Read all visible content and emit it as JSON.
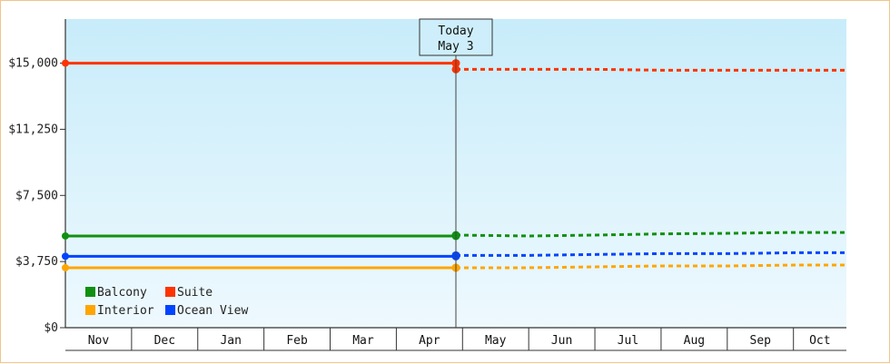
{
  "chart_data": {
    "type": "line",
    "title": "",
    "xlabel": "",
    "ylabel": "",
    "ylim": [
      0,
      17500
    ],
    "y_ticks": [
      {
        "value": 0,
        "label": "$0"
      },
      {
        "value": 3750,
        "label": "$3,750"
      },
      {
        "value": 7500,
        "label": "$7,500"
      },
      {
        "value": 11250,
        "label": "$11,250"
      },
      {
        "value": 15000,
        "label": "$15,000"
      }
    ],
    "months": [
      "Nov",
      "Dec",
      "Jan",
      "Feb",
      "Mar",
      "Apr",
      "May",
      "Jun",
      "Jul",
      "Aug",
      "Sep",
      "Oct"
    ],
    "today": {
      "line1": "Today",
      "line2": "May 3",
      "x": 5.9
    },
    "x_range": [
      0,
      11.8
    ],
    "background": {
      "top": "#c8ecfa",
      "bottom": "#eef9fe"
    },
    "legend_position": "bottom-left",
    "series": [
      {
        "name": "Balcony",
        "color": "#109010",
        "historical": [
          [
            0,
            5200
          ],
          [
            5.9,
            5200
          ]
        ],
        "forecast": [
          [
            5.9,
            5250
          ],
          [
            7.0,
            5200
          ],
          [
            8.0,
            5250
          ],
          [
            9.0,
            5320
          ],
          [
            10.0,
            5350
          ],
          [
            11.0,
            5400
          ],
          [
            11.8,
            5400
          ]
        ]
      },
      {
        "name": "Suite",
        "color": "#ff3300",
        "historical": [
          [
            0,
            15000
          ],
          [
            5.9,
            15000
          ]
        ],
        "forecast": [
          [
            5.9,
            14650
          ],
          [
            7.0,
            14650
          ],
          [
            8.0,
            14650
          ],
          [
            9.0,
            14600
          ],
          [
            10.0,
            14600
          ],
          [
            11.0,
            14600
          ],
          [
            11.8,
            14600
          ]
        ]
      },
      {
        "name": "Interior",
        "color": "#ffa500",
        "historical": [
          [
            0,
            3400
          ],
          [
            5.9,
            3400
          ]
        ],
        "forecast": [
          [
            5.9,
            3400
          ],
          [
            7.0,
            3400
          ],
          [
            8.0,
            3450
          ],
          [
            9.0,
            3500
          ],
          [
            10.0,
            3500
          ],
          [
            11.0,
            3550
          ],
          [
            11.8,
            3550
          ]
        ]
      },
      {
        "name": "Ocean View",
        "color": "#0044ff",
        "historical": [
          [
            0,
            4050
          ],
          [
            5.9,
            4050
          ]
        ],
        "forecast": [
          [
            5.9,
            4100
          ],
          [
            7.0,
            4100
          ],
          [
            8.0,
            4150
          ],
          [
            9.0,
            4200
          ],
          [
            10.0,
            4200
          ],
          [
            11.0,
            4250
          ],
          [
            11.8,
            4250
          ]
        ]
      }
    ],
    "legend": [
      {
        "name": "Balcony",
        "color": "#109010"
      },
      {
        "name": "Suite",
        "color": "#ff3300"
      },
      {
        "name": "Interior",
        "color": "#ffa500"
      },
      {
        "name": "Ocean View",
        "color": "#0044ff"
      }
    ]
  }
}
